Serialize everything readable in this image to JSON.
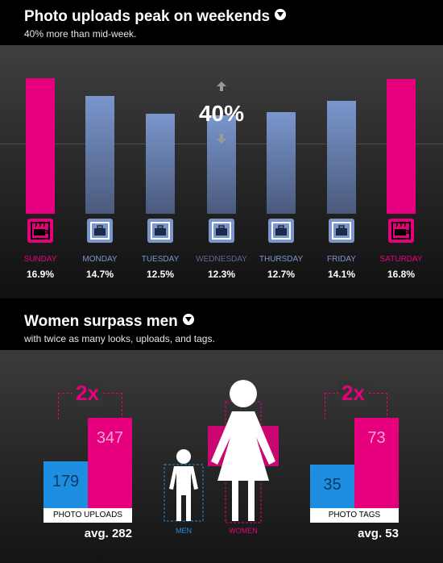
{
  "section1": {
    "title": "Photo uploads peak on weekends",
    "subtitle": "40% more than mid-week.",
    "annotation": "40%"
  },
  "section2": {
    "title": "Women surpass men",
    "subtitle": "with twice as many looks, uploads, and tags."
  },
  "colors": {
    "weekend": "#e6007e",
    "weekday": "#7a96cc",
    "men": "#1e8fe0",
    "women": "#e6007e"
  },
  "chart_data": [
    {
      "type": "bar",
      "categories": [
        "SUNDAY",
        "MONDAY",
        "TUESDAY",
        "WEDNESDAY",
        "THURSDAY",
        "FRIDAY",
        "SATURDAY"
      ],
      "values": [
        16.9,
        14.7,
        12.5,
        12.3,
        12.7,
        14.1,
        16.8
      ],
      "value_labels": [
        "16.9%",
        "14.7%",
        "12.5%",
        "12.3%",
        "12.7%",
        "14.1%",
        "16.8%"
      ],
      "icons": [
        "coffee-icon",
        "briefcase-icon",
        "briefcase-icon",
        "briefcase-icon",
        "briefcase-icon",
        "briefcase-icon",
        "coffee-icon"
      ],
      "ylim": [
        0,
        16.9
      ]
    },
    {
      "type": "bar",
      "categories": [
        "MEN",
        "WOMEN"
      ],
      "values": [
        179,
        347
      ],
      "value_labels": [
        "179",
        "347"
      ],
      "multiplier_label": "2x",
      "caption": "PHOTO UPLOADS",
      "average_label": "avg. 282"
    },
    {
      "type": "bar",
      "categories": [
        "MEN",
        "WOMEN"
      ],
      "values": [
        35,
        73
      ],
      "value_labels": [
        "35",
        "73"
      ],
      "multiplier_label": "2x",
      "caption": "PHOTO TAGS",
      "average_label": "avg. 53"
    }
  ],
  "figures": {
    "men_label": "MEN",
    "women_label": "WOMEN"
  }
}
